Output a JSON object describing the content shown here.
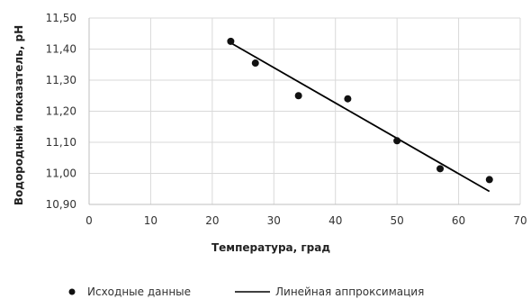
{
  "chart_data": {
    "type": "scatter",
    "xlabel": "Температура, град",
    "ylabel": "Водородный показатель, pH",
    "xlim": [
      0,
      70
    ],
    "ylim": [
      10.9,
      11.5
    ],
    "x_ticks": [
      "0",
      "10",
      "20",
      "30",
      "40",
      "50",
      "60",
      "70"
    ],
    "y_ticks": [
      "10,90",
      "11,00",
      "11,10",
      "11,20",
      "11,30",
      "11,40",
      "11,50"
    ],
    "grid": true,
    "legend_position": "bottom",
    "series": [
      {
        "name": "Исходные данные",
        "type": "scatter",
        "color": "#111111",
        "points": [
          {
            "x": 23,
            "y": 11.425
          },
          {
            "x": 27,
            "y": 11.355
          },
          {
            "x": 34,
            "y": 11.25
          },
          {
            "x": 42,
            "y": 11.24
          },
          {
            "x": 50,
            "y": 11.105
          },
          {
            "x": 57,
            "y": 11.015
          },
          {
            "x": 65,
            "y": 10.98
          }
        ]
      },
      {
        "name": "Линейная аппроксимация",
        "type": "line",
        "color": "#000000",
        "points": [
          {
            "x": 23,
            "y": 11.42
          },
          {
            "x": 65,
            "y": 10.942
          }
        ]
      }
    ]
  }
}
